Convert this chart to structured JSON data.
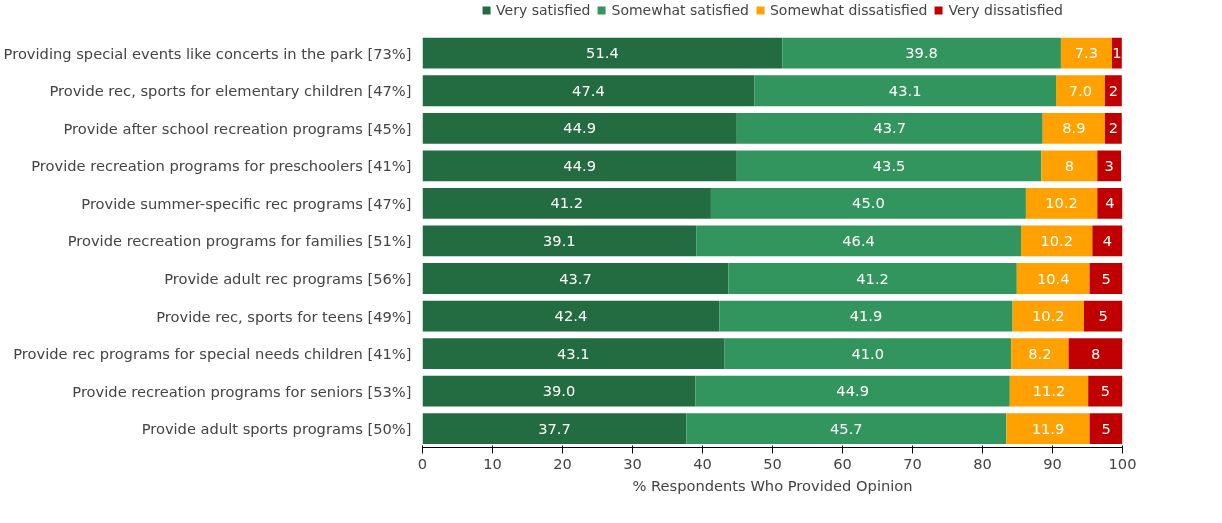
{
  "chart_data": {
    "type": "bar",
    "orientation": "horizontal",
    "stacked": true,
    "xlabel": "% Respondents Who Provided Opinion",
    "categories": [
      "Providing special events like concerts in the park [73%]",
      "Provide rec, sports for elementary children [47%]",
      "Provide after school recreation programs [45%]",
      "Provide recreation programs for preschoolers [41%]",
      "Provide summer-specific rec programs [47%]",
      "Provide recreation programs for families [51%]",
      "Provide adult rec programs [56%]",
      "Provide rec, sports for teens [49%]",
      "Provide rec programs for special needs children [41%]",
      "Provide recreation programs for seniors [53%]",
      "Provide adult sports programs [50%]"
    ],
    "series": [
      {
        "name": "Very satisfied",
        "color": "#236b40",
        "values": [
          51.4,
          47.4,
          44.9,
          44.9,
          41.2,
          39.1,
          43.7,
          42.4,
          43.1,
          39.0,
          37.7
        ],
        "value_labels": [
          "51.4",
          "47.4",
          "44.9",
          "44.9",
          "41.2",
          "39.1",
          "43.7",
          "42.4",
          "43.1",
          "39.0",
          "37.7"
        ]
      },
      {
        "name": "Somewhat satisfied",
        "color": "#33955e",
        "values": [
          39.8,
          43.1,
          43.7,
          43.5,
          45.0,
          46.4,
          41.2,
          41.9,
          41.0,
          44.9,
          45.7
        ],
        "value_labels": [
          "39.8",
          "43.1",
          "43.7",
          "43.5",
          "45.0",
          "46.4",
          "41.2",
          "41.9",
          "41.0",
          "44.9",
          "45.7"
        ]
      },
      {
        "name": "Somewhat dissatisfied",
        "color": "#ffa100",
        "values": [
          7.3,
          7.0,
          8.9,
          8,
          10.2,
          10.2,
          10.4,
          10.2,
          8.2,
          11.2,
          11.9
        ],
        "value_labels": [
          "7.3",
          "7.0",
          "8.9",
          "8",
          "10.2",
          "10.2",
          "10.4",
          "10.2",
          "8.2",
          "11.2",
          "11.9"
        ]
      },
      {
        "name": "Very dissatisfied",
        "color": "#c00000",
        "values": [
          1.4,
          2.4,
          2.4,
          3.4,
          3.6,
          4.3,
          4.7,
          5.5,
          7.7,
          4.9,
          4.7
        ],
        "value_labels": [
          "1",
          "2",
          "2",
          "3",
          "4",
          "4",
          "5",
          "5",
          "8",
          "5",
          "5"
        ]
      }
    ],
    "xlim": [
      0,
      100
    ],
    "xticks": [
      0,
      10,
      20,
      30,
      40,
      50,
      60,
      70,
      80,
      90,
      100
    ],
    "grid": false,
    "legend": "top"
  }
}
